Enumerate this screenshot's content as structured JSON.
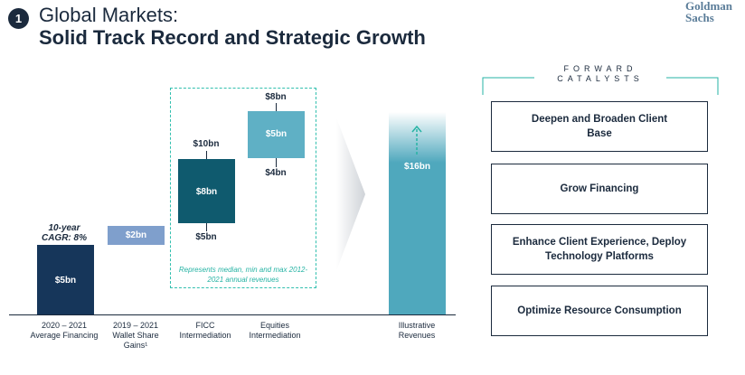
{
  "header": {
    "badge": "1",
    "title_line1": "Global Markets:",
    "title_line2": "Solid Track Record and Strategic Growth",
    "logo_line1": "Goldman",
    "logo_line2": "Sachs"
  },
  "chart_data": {
    "type": "bar",
    "title": "",
    "categories": [
      "2020 – 2021 Average Financing",
      "2019 – 2021 Wallet Share Gains¹",
      "FICC Intermediation",
      "Equities Intermediation",
      "Illustrative Revenues"
    ],
    "labels": {
      "financing": "$5bn",
      "wallet": "$2bn",
      "ficc_mid": "$8bn",
      "ficc_max": "$10bn",
      "ficc_min": "$5bn",
      "eq_mid": "$5bn",
      "eq_max": "$8bn",
      "eq_min": "$4bn",
      "total": "$16bn"
    },
    "values": {
      "financing": 5,
      "wallet": 2,
      "ficc": {
        "median": 8,
        "max": 10,
        "min": 5
      },
      "equities": {
        "median": 5,
        "max": 8,
        "min": 4
      },
      "total": 16
    },
    "cagr_text": "10-year CAGR: 8%",
    "note": "Represents median, min and max 2012-2021 annual revenues",
    "colors": {
      "financing": "#16365a",
      "wallet": "#7f9fcc",
      "ficc": "#0f5a6e",
      "equities": "#5fb0c5",
      "total": "#4fa8bd",
      "annotation": "#26b3a4"
    }
  },
  "catalysts": {
    "title_line1": "FORWARD",
    "title_line2": "CATALYSTS",
    "items": [
      "Deepen and Broaden Client Base",
      "Grow Financing",
      "Enhance Client Experience, Deploy Technology Platforms",
      "Optimize Resource Consumption"
    ]
  }
}
